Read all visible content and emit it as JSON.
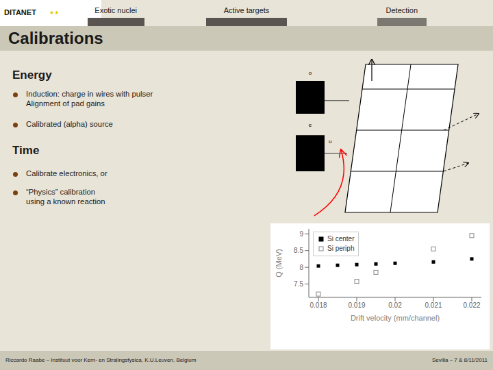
{
  "chart_data": {
    "type": "scatter",
    "title": "Calibrations",
    "xlabel": "Drift velocity (mm/channel)",
    "ylabel": "Q (MeV)",
    "xlim": [
      0.01775,
      0.02225
    ],
    "xticks": [
      0.018,
      0.019,
      0.02,
      0.021,
      0.022
    ],
    "ylim": [
      7.1,
      9.15
    ],
    "yticks": [
      7.5,
      8,
      8.5,
      9
    ],
    "grid": false,
    "legend": "upper left",
    "series": [
      {
        "name": "Si center",
        "color": "#000000",
        "marker": "square",
        "x": [
          0.018,
          0.0185,
          0.019,
          0.0195,
          0.02,
          0.021,
          0.022
        ],
        "values": [
          8.04,
          8.06,
          8.08,
          8.1,
          8.12,
          8.16,
          8.25
        ]
      },
      {
        "name": "Si periph",
        "color": "#888888",
        "marker": "hollow-square",
        "x": [
          0.018,
          0.019,
          0.0195,
          0.021,
          0.022
        ],
        "values": [
          7.2,
          7.58,
          7.85,
          8.55,
          8.95
        ]
      }
    ],
    "annotations": [
      "DITANET",
      "★★",
      "Exotic nuclei",
      "Active targets",
      "Detection",
      "Energy",
      "Induction: charge in wires with pulser",
      "Alignment of pad gains",
      "Calibrated (alpha) source",
      "Time",
      "Calibrate electronics, or",
      "“Physics” calibration",
      "using a known reaction",
      "Riccardo Raabe – Instituut voor Kern- en Stralingsfysica, K.U.Leuven, Belgium",
      "Sevilla – 7 & 8/11/2011",
      "o",
      "e",
      "u"
    ]
  }
}
